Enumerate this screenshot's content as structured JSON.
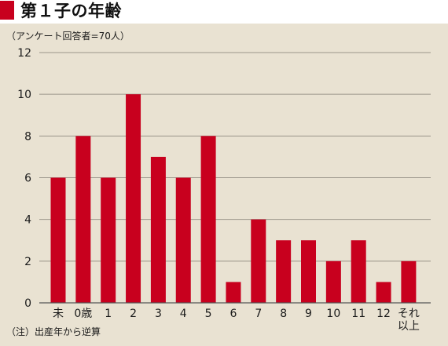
{
  "title": "第１子の年齢",
  "note_top": "（アンケート回答者=70人）",
  "note_bottom": "（注）出産年から逆算",
  "colors": {
    "bar": "#c8001e",
    "background": "#e9e2d2",
    "marker": "#c8001e"
  },
  "chart_data": {
    "type": "bar",
    "categories": [
      "未",
      "0歳",
      "1",
      "2",
      "3",
      "4",
      "5",
      "6",
      "7",
      "8",
      "9",
      "10",
      "11",
      "12",
      "それ以上"
    ],
    "category_lines": [
      [
        "未"
      ],
      [
        "0歳"
      ],
      [
        "1"
      ],
      [
        "2"
      ],
      [
        "3"
      ],
      [
        "4"
      ],
      [
        "5"
      ],
      [
        "6"
      ],
      [
        "7"
      ],
      [
        "8"
      ],
      [
        "9"
      ],
      [
        "10"
      ],
      [
        "11"
      ],
      [
        "12"
      ],
      [
        "それ",
        "以上"
      ]
    ],
    "values": [
      6,
      8,
      6,
      10,
      7,
      6,
      8,
      1,
      4,
      3,
      3,
      2,
      3,
      1,
      2
    ],
    "yticks": [
      0,
      2,
      4,
      6,
      8,
      10,
      12
    ],
    "ylim": [
      0,
      12
    ],
    "grid": true
  }
}
